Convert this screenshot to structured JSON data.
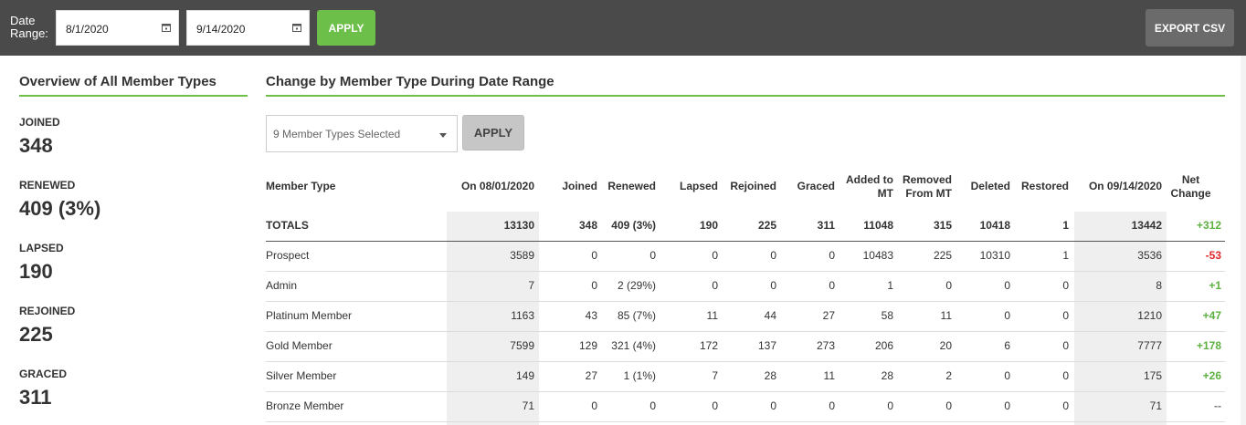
{
  "toolbar": {
    "date_label_line1": "Date",
    "date_label_line2": "Range:",
    "start_date": "8/1/2020",
    "end_date": "9/14/2020",
    "apply_label": "APPLY",
    "export_label": "EXPORT CSV"
  },
  "overview": {
    "title": "Overview of All Member Types",
    "stats": [
      {
        "label": "JOINED",
        "value": "348"
      },
      {
        "label": "RENEWED",
        "value": "409 (3%)"
      },
      {
        "label": "LAPSED",
        "value": "190"
      },
      {
        "label": "REJOINED",
        "value": "225"
      },
      {
        "label": "GRACED",
        "value": "311"
      }
    ]
  },
  "change": {
    "title": "Change by Member Type During Date Range",
    "filter_value": "9 Member Types Selected",
    "apply_label": "APPLY",
    "headers": [
      "Member Type",
      "On 08/01/2020",
      "Joined",
      "Renewed",
      "Lapsed",
      "Rejoined",
      "Graced",
      "Added to MT",
      "Removed From MT",
      "Deleted",
      "Restored",
      "On 09/14/2020",
      "Net Change"
    ],
    "header_lines": {
      "added_1": "Added to",
      "added_2": "MT",
      "removed_1": "Removed",
      "removed_2": "From MT",
      "net_1": "Net",
      "net_2": "Change"
    },
    "totals": [
      "TOTALS",
      "13130",
      "348",
      "409 (3%)",
      "190",
      "225",
      "311",
      "11048",
      "315",
      "10418",
      "1",
      "13442",
      "+312"
    ],
    "rows": [
      [
        "Prospect",
        "3589",
        "0",
        "0",
        "0",
        "0",
        "0",
        "10483",
        "225",
        "10310",
        "1",
        "3536",
        "-53"
      ],
      [
        "Admin",
        "7",
        "0",
        "2 (29%)",
        "0",
        "0",
        "0",
        "1",
        "0",
        "0",
        "0",
        "8",
        "+1"
      ],
      [
        "Platinum Member",
        "1163",
        "43",
        "85 (7%)",
        "11",
        "44",
        "27",
        "58",
        "11",
        "0",
        "0",
        "1210",
        "+47"
      ],
      [
        "Gold Member",
        "7599",
        "129",
        "321 (4%)",
        "172",
        "137",
        "273",
        "206",
        "20",
        "6",
        "0",
        "7777",
        "+178"
      ],
      [
        "Silver Member",
        "149",
        "27",
        "1 (1%)",
        "7",
        "28",
        "11",
        "28",
        "2",
        "0",
        "0",
        "175",
        "+26"
      ],
      [
        "Bronze Member",
        "71",
        "0",
        "0",
        "0",
        "0",
        "0",
        "0",
        "0",
        "0",
        "0",
        "71",
        "--"
      ]
    ]
  },
  "colors": {
    "topbar": "#4a4a4a",
    "accent_green": "#6cc04a",
    "positive": "#5cb140",
    "negative": "#e0272b"
  },
  "icons": {
    "date_picker": "calendar-icon",
    "dropdown": "chevron-down-icon"
  }
}
